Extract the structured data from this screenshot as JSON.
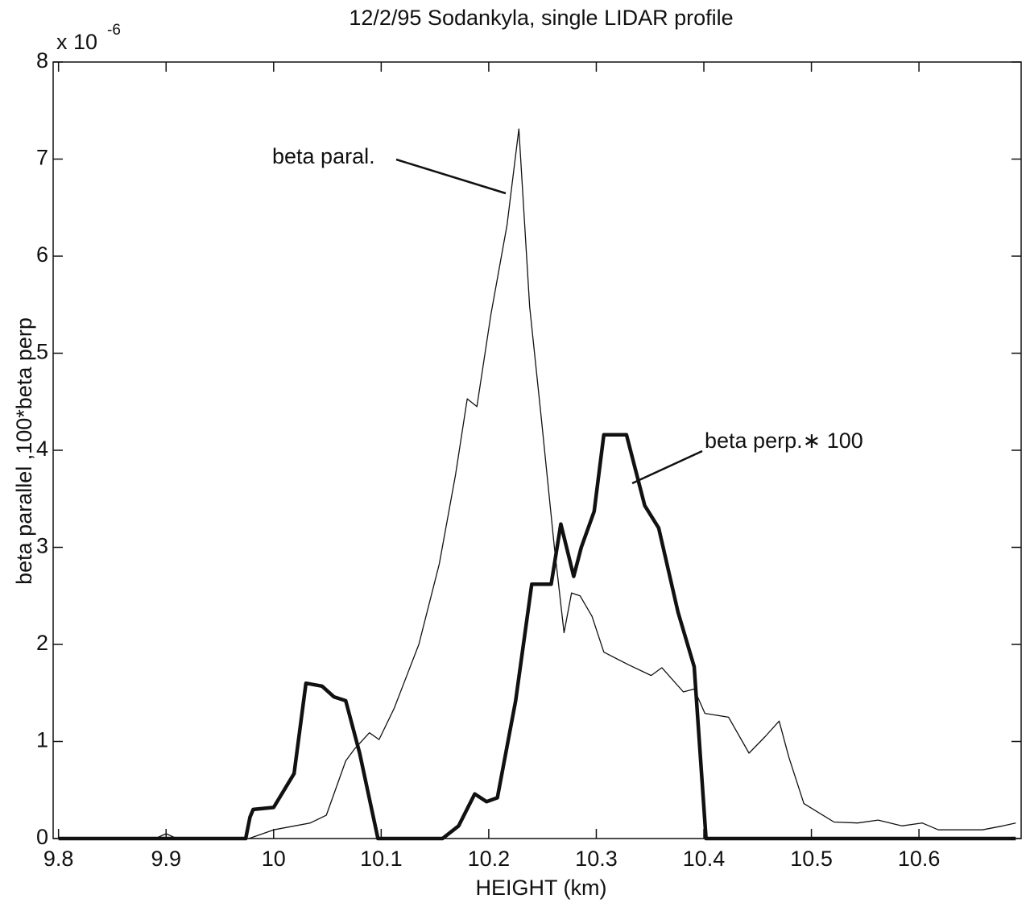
{
  "chart_data": {
    "type": "line",
    "title": "12/2/95 Sodankyla, single LIDAR profile",
    "xlabel": "HEIGHT (km)",
    "ylabel": "beta parallel   ,100*beta perp",
    "multiplier_base": "x 10",
    "multiplier_exponent": "-6",
    "xlim": [
      9.795,
      10.695
    ],
    "xticks": [
      9.8,
      9.9,
      {
        "value": 10.0,
        "label": "10"
      },
      10.1,
      10.2,
      10.3,
      10.4,
      10.5,
      10.6
    ],
    "ylim": [
      0,
      8
    ],
    "yticks": [
      0,
      1,
      2,
      3,
      4,
      5,
      6,
      7,
      8
    ],
    "grid": false,
    "series": [
      {
        "name": "beta paral.",
        "color": "#111111",
        "width": 1.3,
        "x": [
          9.8,
          9.89,
          9.9,
          9.91,
          9.977,
          10.0,
          10.034,
          10.049,
          10.067,
          10.075,
          10.089,
          10.098,
          10.112,
          10.135,
          10.154,
          10.169,
          10.18,
          10.189,
          10.202,
          10.217,
          10.228,
          10.238,
          10.249,
          10.261,
          10.27,
          10.277,
          10.285,
          10.296,
          10.307,
          10.33,
          10.351,
          10.361,
          10.381,
          10.391,
          10.401,
          10.423,
          10.442,
          10.457,
          10.47,
          10.479,
          10.493,
          10.521,
          10.543,
          10.562,
          10.584,
          10.603,
          10.618,
          10.659,
          10.678,
          10.69
        ],
        "values": [
          0,
          0,
          0.05,
          0,
          0,
          0.09,
          0.16,
          0.24,
          0.8,
          0.92,
          1.09,
          1.02,
          1.34,
          2.0,
          2.83,
          3.74,
          4.53,
          4.45,
          5.4,
          6.32,
          7.31,
          5.48,
          4.32,
          3.0,
          2.12,
          2.53,
          2.5,
          2.29,
          1.92,
          1.79,
          1.68,
          1.76,
          1.51,
          1.54,
          1.29,
          1.25,
          0.88,
          1.05,
          1.21,
          0.84,
          0.36,
          0.17,
          0.16,
          0.19,
          0.13,
          0.16,
          0.09,
          0.09,
          0.13,
          0.16
        ]
      },
      {
        "name": "beta perp.∗ 100",
        "color": "#111111",
        "width": 4.5,
        "x": [
          9.8,
          9.974,
          9.978,
          9.981,
          10.0,
          10.019,
          10.03,
          10.045,
          10.056,
          10.067,
          10.08,
          10.097,
          10.157,
          10.172,
          10.187,
          10.198,
          10.208,
          10.225,
          10.24,
          10.258,
          10.267,
          10.279,
          10.286,
          10.298,
          10.307,
          10.328,
          10.345,
          10.358,
          10.376,
          10.391,
          10.402,
          10.69
        ],
        "values": [
          0,
          0,
          0.22,
          0.3,
          0.32,
          0.67,
          1.6,
          1.57,
          1.46,
          1.42,
          0.88,
          0,
          0,
          0.13,
          0.46,
          0.38,
          0.42,
          1.42,
          2.62,
          2.62,
          3.24,
          2.7,
          3.0,
          3.37,
          4.16,
          4.16,
          3.43,
          3.2,
          2.33,
          1.77,
          0,
          0
        ]
      }
    ]
  }
}
